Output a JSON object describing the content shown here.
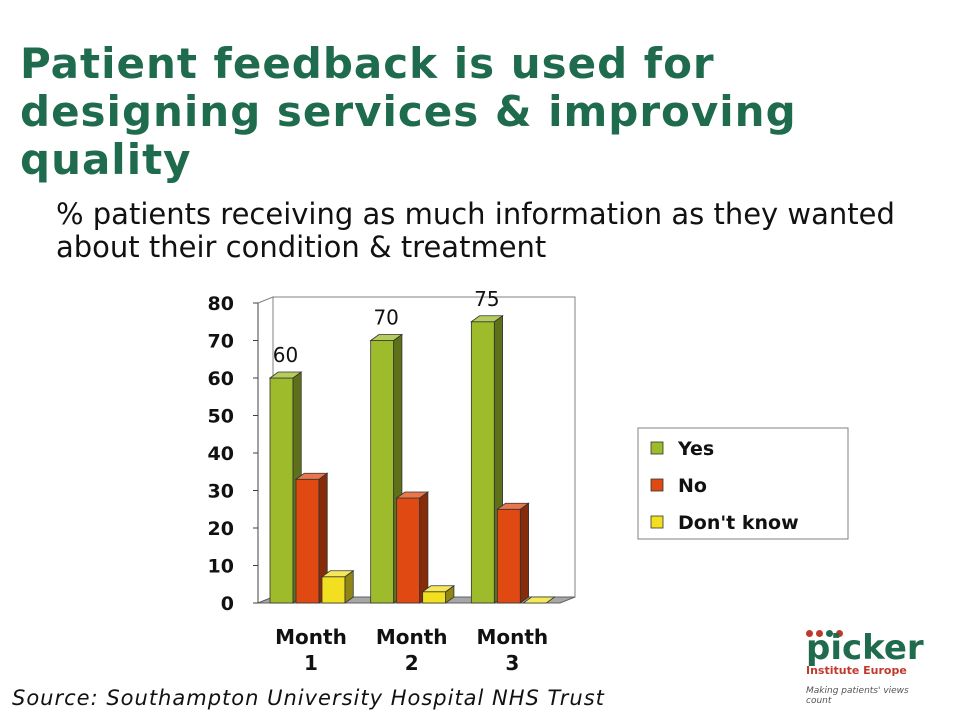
{
  "slide": {
    "title": "Patient feedback is used for designing services & improving quality",
    "subtitle": "% patients receiving as much information as they wanted about their condition & treatment",
    "source": "Source: Southampton University Hospital NHS Trust"
  },
  "logo": {
    "word": "picker",
    "name": "Institute Europe",
    "tagline": "Making patients' views count",
    "dot_colors": [
      "#c0392b",
      "#c0392b",
      "#1f6b4e",
      "#c0392b"
    ]
  },
  "chart_data": {
    "type": "bar",
    "categories": [
      "Month 1",
      "Month 2",
      "Month 3"
    ],
    "series": [
      {
        "name": "Yes",
        "values": [
          60,
          70,
          75
        ],
        "color": "#9dbb2a",
        "data_labels": [
          "60",
          "70",
          "75"
        ]
      },
      {
        "name": "No",
        "values": [
          33,
          28,
          25
        ],
        "color": "#e04a12"
      },
      {
        "name": "Don't know",
        "values": [
          7,
          3,
          0
        ],
        "color": "#f2e020"
      }
    ],
    "ylim": [
      0,
      80
    ],
    "yticks": [
      0,
      10,
      20,
      30,
      40,
      50,
      60,
      70,
      80
    ],
    "grid": false,
    "legend": "right",
    "style": "3d"
  }
}
